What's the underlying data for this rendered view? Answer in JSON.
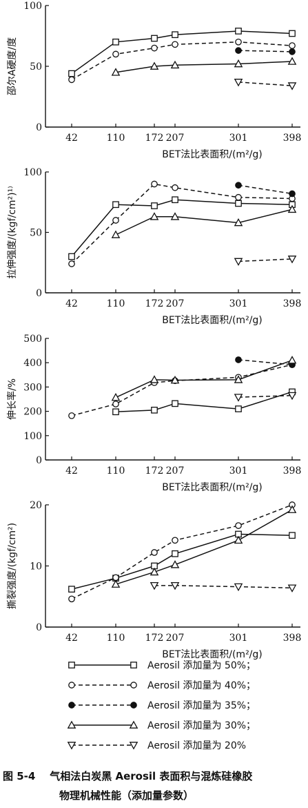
{
  "figure": {
    "caption_number": "图 5-4",
    "caption_line1": "气相法白炭黑 Aerosil 表面积与混炼硅橡胶",
    "caption_line2": "物理机械性能（添加量参数）"
  },
  "legend": [
    {
      "label": "Aerosil 添加量为 50%；",
      "marker": "square-open",
      "dash": "solid"
    },
    {
      "label": "Aerosil 添加量为 40%；",
      "marker": "circle-open",
      "dash": "dashed"
    },
    {
      "label": "Aerosil 添加量为 35%；",
      "marker": "circle-filled",
      "dash": "dashed"
    },
    {
      "label": "Aerosil 添加量为 30%；",
      "marker": "triangle-up-open",
      "dash": "solid"
    },
    {
      "label": "Aerosil 添加量为 20%",
      "marker": "triangle-down-open",
      "dash": "dashed"
    }
  ],
  "chart_data": [
    {
      "type": "line",
      "xlabel": "BET法比表面积/(m²/g)",
      "ylabel": "邵尔A硬度/度",
      "x_ticks": [
        42,
        110,
        172,
        207,
        301,
        398
      ],
      "xlim": [
        20,
        410
      ],
      "ylim": [
        0,
        100
      ],
      "y_ticks": [
        0,
        50,
        100
      ],
      "series": [
        {
          "name": "Aerosil 添加量为 50%；",
          "x": [
            42,
            110,
            172,
            207,
            301,
            398
          ],
          "y": [
            44,
            70,
            73,
            76,
            79,
            77
          ]
        },
        {
          "name": "Aerosil 添加量为 40%；",
          "x": [
            42,
            110,
            172,
            207,
            301,
            398
          ],
          "y": [
            39,
            60,
            65,
            68,
            70,
            67
          ]
        },
        {
          "name": "Aerosil 添加量为 35%；",
          "x": [
            301,
            398
          ],
          "y": [
            63,
            62
          ]
        },
        {
          "name": "Aerosil 添加量为 30%；",
          "x": [
            110,
            172,
            207,
            301,
            398
          ],
          "y": [
            45,
            50,
            51,
            52,
            54
          ]
        },
        {
          "name": "Aerosil 添加量为 20%",
          "x": [
            301,
            398
          ],
          "y": [
            37,
            34
          ]
        }
      ]
    },
    {
      "type": "line",
      "xlabel": "BET法比表面积/(m²/g)",
      "ylabel": "拉伸强度/(kgf/cm²)¹⁾",
      "x_ticks": [
        42,
        110,
        172,
        207,
        301,
        398
      ],
      "xlim": [
        20,
        410
      ],
      "ylim": [
        0,
        100
      ],
      "y_ticks": [
        0,
        50,
        100
      ],
      "series": [
        {
          "name": "Aerosil 添加量为 50%；",
          "x": [
            42,
            110,
            172,
            207,
            301,
            398
          ],
          "y": [
            30,
            73,
            72,
            77,
            74,
            73
          ]
        },
        {
          "name": "Aerosil 添加量为 40%；",
          "x": [
            42,
            110,
            172,
            207,
            301,
            398
          ],
          "y": [
            24,
            60,
            90,
            87,
            79,
            78
          ]
        },
        {
          "name": "Aerosil 添加量为 35%；",
          "x": [
            301,
            398
          ],
          "y": [
            89,
            82
          ]
        },
        {
          "name": "Aerosil 添加量为 30%；",
          "x": [
            110,
            172,
            207,
            301,
            398
          ],
          "y": [
            48,
            63,
            63,
            58,
            69
          ]
        },
        {
          "name": "Aerosil 添加量为 20%",
          "x": [
            301,
            398
          ],
          "y": [
            26,
            28
          ]
        }
      ]
    },
    {
      "type": "line",
      "xlabel": "BET法比表面积/(m²/g)",
      "ylabel": "伸长率/%",
      "x_ticks": [
        42,
        110,
        172,
        207,
        301,
        398
      ],
      "xlim": [
        20,
        410
      ],
      "ylim": [
        0,
        500
      ],
      "y_ticks": [
        0,
        100,
        200,
        300,
        400,
        500
      ],
      "series": [
        {
          "name": "Aerosil 添加量为 50%；",
          "x": [
            110,
            172,
            207,
            301,
            398
          ],
          "y": [
            198,
            205,
            232,
            210,
            280
          ]
        },
        {
          "name": "Aerosil 添加量为 40%；",
          "x": [
            42,
            110,
            172,
            207,
            301,
            398
          ],
          "y": [
            182,
            230,
            318,
            326,
            340,
            392
          ]
        },
        {
          "name": "Aerosil 添加量为 35%；",
          "x": [
            301,
            398
          ],
          "y": [
            412,
            392
          ]
        },
        {
          "name": "Aerosil 添加量为 30%；",
          "x": [
            110,
            172,
            207,
            301,
            398
          ],
          "y": [
            257,
            330,
            328,
            330,
            410
          ]
        },
        {
          "name": "Aerosil 添加量为 20%",
          "x": [
            301,
            398
          ],
          "y": [
            258,
            265
          ]
        }
      ]
    },
    {
      "type": "line",
      "xlabel": "BET法比表面积/(m²/g)",
      "ylabel": "撕裂强度/(kgf/cm²)",
      "x_ticks": [
        42,
        110,
        172,
        207,
        301,
        398
      ],
      "xlim": [
        20,
        410
      ],
      "ylim": [
        0,
        20
      ],
      "y_ticks": [
        0,
        10,
        20
      ],
      "series": [
        {
          "name": "Aerosil 添加量为 50%；",
          "x": [
            42,
            110,
            172,
            207,
            301,
            398
          ],
          "y": [
            6.2,
            8.0,
            10.0,
            12.0,
            15.2,
            15.0
          ]
        },
        {
          "name": "Aerosil 添加量为 40%；",
          "x": [
            42,
            110,
            172,
            207,
            301,
            398
          ],
          "y": [
            4.6,
            8.1,
            12.2,
            14.2,
            16.6,
            20.0
          ]
        },
        {
          "name": "Aerosil 添加量为 30%；",
          "x": [
            110,
            172,
            207,
            301,
            398
          ],
          "y": [
            7.0,
            9.0,
            10.2,
            14.2,
            19.2
          ]
        },
        {
          "name": "Aerosil 添加量为 20%",
          "x": [
            172,
            207,
            301,
            398
          ],
          "y": [
            6.8,
            6.8,
            6.6,
            6.4
          ]
        }
      ]
    }
  ]
}
